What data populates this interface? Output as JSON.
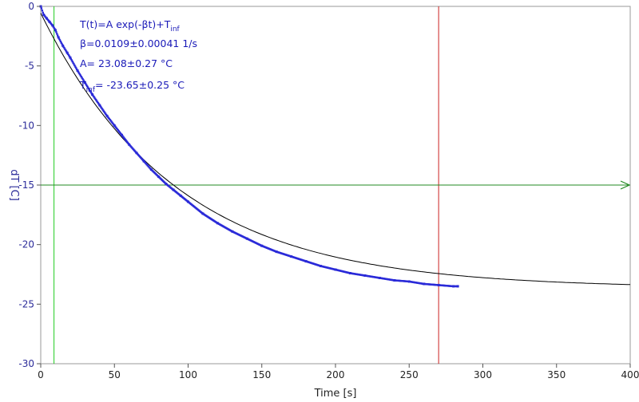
{
  "chart_data": {
    "type": "scatter",
    "xlabel": "Time [s]",
    "ylabel": "dT [C]",
    "xlim": [
      0,
      400
    ],
    "ylim": [
      -30,
      0
    ],
    "x_ticks": [
      0,
      50,
      100,
      150,
      200,
      250,
      300,
      350,
      400
    ],
    "y_ticks": [
      0,
      -5,
      -10,
      -15,
      -20,
      -25,
      -30
    ],
    "grid": false,
    "fit": {
      "model": "exponential",
      "A": 23.08,
      "beta": 0.0109,
      "T_inf": -23.65,
      "x_range": [
        0,
        400
      ],
      "color": "#000000"
    },
    "series": [
      {
        "type": "scatter",
        "color": "#2a2ad8",
        "x": [
          0,
          2,
          4,
          6,
          8,
          10,
          12,
          15,
          18,
          20,
          25,
          30,
          35,
          40,
          45,
          50,
          55,
          60,
          65,
          70,
          75,
          80,
          85,
          90,
          95,
          100,
          110,
          120,
          130,
          140,
          150,
          160,
          170,
          180,
          190,
          200,
          210,
          220,
          230,
          240,
          250,
          260,
          270,
          280,
          283
        ],
        "y": [
          0.0,
          -0.7,
          -1.0,
          -1.3,
          -1.6,
          -2.0,
          -2.6,
          -3.3,
          -3.9,
          -4.3,
          -5.4,
          -6.4,
          -7.4,
          -8.3,
          -9.2,
          -10.0,
          -10.8,
          -11.6,
          -12.3,
          -13.0,
          -13.7,
          -14.3,
          -14.9,
          -15.4,
          -15.9,
          -16.4,
          -17.4,
          -18.2,
          -18.9,
          -19.5,
          -20.1,
          -20.6,
          -21.0,
          -21.4,
          -21.8,
          -22.1,
          -22.4,
          -22.6,
          -22.8,
          -23.0,
          -23.1,
          -23.3,
          -23.4,
          -23.5,
          -23.5
        ]
      }
    ],
    "reference_lines": [
      {
        "orientation": "vertical",
        "value": 9,
        "color": "#22cc22"
      },
      {
        "orientation": "vertical",
        "value": 270,
        "color": "#cc2222"
      },
      {
        "orientation": "horizontal",
        "value": -15,
        "color": "#228822",
        "arrow": true
      }
    ],
    "annotations": [
      {
        "id": "eq",
        "text": "T(t)=A exp(-βt)+T",
        "sub": "inf"
      },
      {
        "id": "beta",
        "text": "β=0.0109±0.00041 1/s"
      },
      {
        "id": "A",
        "text": "A= 23.08±0.27 °C"
      },
      {
        "id": "tinf",
        "text": "T",
        "sub": "inf",
        "after": "= -23.65±0.25 °C"
      }
    ]
  }
}
